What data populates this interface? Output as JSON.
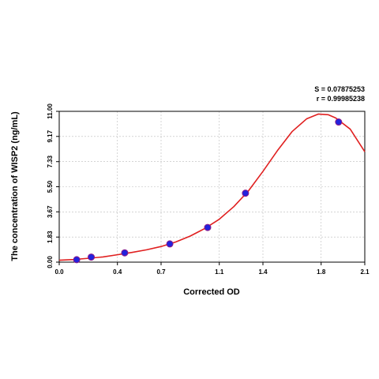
{
  "stats": {
    "s_text": "S = 0.07875253",
    "r_text": "r = 0.99985238"
  },
  "chart_data": {
    "type": "scatter",
    "title": "",
    "xlabel": "Corrected OD",
    "ylabel": "The concentration of WISP2 (ng/mL)",
    "xlim": [
      0.0,
      2.1
    ],
    "ylim": [
      0.0,
      11.0
    ],
    "xticks": [
      0.0,
      0.4,
      0.7,
      1.1,
      1.4,
      1.8,
      2.1
    ],
    "xtick_labels": [
      "0.0",
      "0.4",
      "0.7",
      "1.1",
      "1.4",
      "1.8",
      "2.1"
    ],
    "yticks": [
      0.0,
      1.83,
      3.67,
      5.5,
      7.33,
      9.17,
      11.0
    ],
    "ytick_labels": [
      "0.00",
      "1.83",
      "3.67",
      "5.50",
      "7.33",
      "9.17",
      "11.00"
    ],
    "grid": true,
    "points": [
      {
        "x": 0.12,
        "y": 0.18
      },
      {
        "x": 0.22,
        "y": 0.37
      },
      {
        "x": 0.45,
        "y": 0.68
      },
      {
        "x": 0.76,
        "y": 1.33
      },
      {
        "x": 1.02,
        "y": 2.53
      },
      {
        "x": 1.28,
        "y": 5.03
      },
      {
        "x": 1.92,
        "y": 10.22
      }
    ],
    "fit_curve": [
      {
        "x": 0.0,
        "y": 0.14
      },
      {
        "x": 0.1,
        "y": 0.19
      },
      {
        "x": 0.2,
        "y": 0.28
      },
      {
        "x": 0.3,
        "y": 0.38
      },
      {
        "x": 0.4,
        "y": 0.54
      },
      {
        "x": 0.5,
        "y": 0.71
      },
      {
        "x": 0.6,
        "y": 0.9
      },
      {
        "x": 0.7,
        "y": 1.14
      },
      {
        "x": 0.8,
        "y": 1.47
      },
      {
        "x": 0.9,
        "y": 1.9
      },
      {
        "x": 1.0,
        "y": 2.45
      },
      {
        "x": 1.1,
        "y": 3.13
      },
      {
        "x": 1.2,
        "y": 4.05
      },
      {
        "x": 1.3,
        "y": 5.19
      },
      {
        "x": 1.4,
        "y": 6.62
      },
      {
        "x": 1.5,
        "y": 8.14
      },
      {
        "x": 1.6,
        "y": 9.52
      },
      {
        "x": 1.7,
        "y": 10.45
      },
      {
        "x": 1.78,
        "y": 10.8
      },
      {
        "x": 1.85,
        "y": 10.75
      },
      {
        "x": 1.9,
        "y": 10.52
      },
      {
        "x": 2.0,
        "y": 9.7
      },
      {
        "x": 2.1,
        "y": 8.05
      }
    ],
    "colors": {
      "curve": "#e02020",
      "point_fill": "#2222dd",
      "point_stroke": "#8a1a8a",
      "grid": "#bbbbbb",
      "axis": "#000000"
    }
  }
}
